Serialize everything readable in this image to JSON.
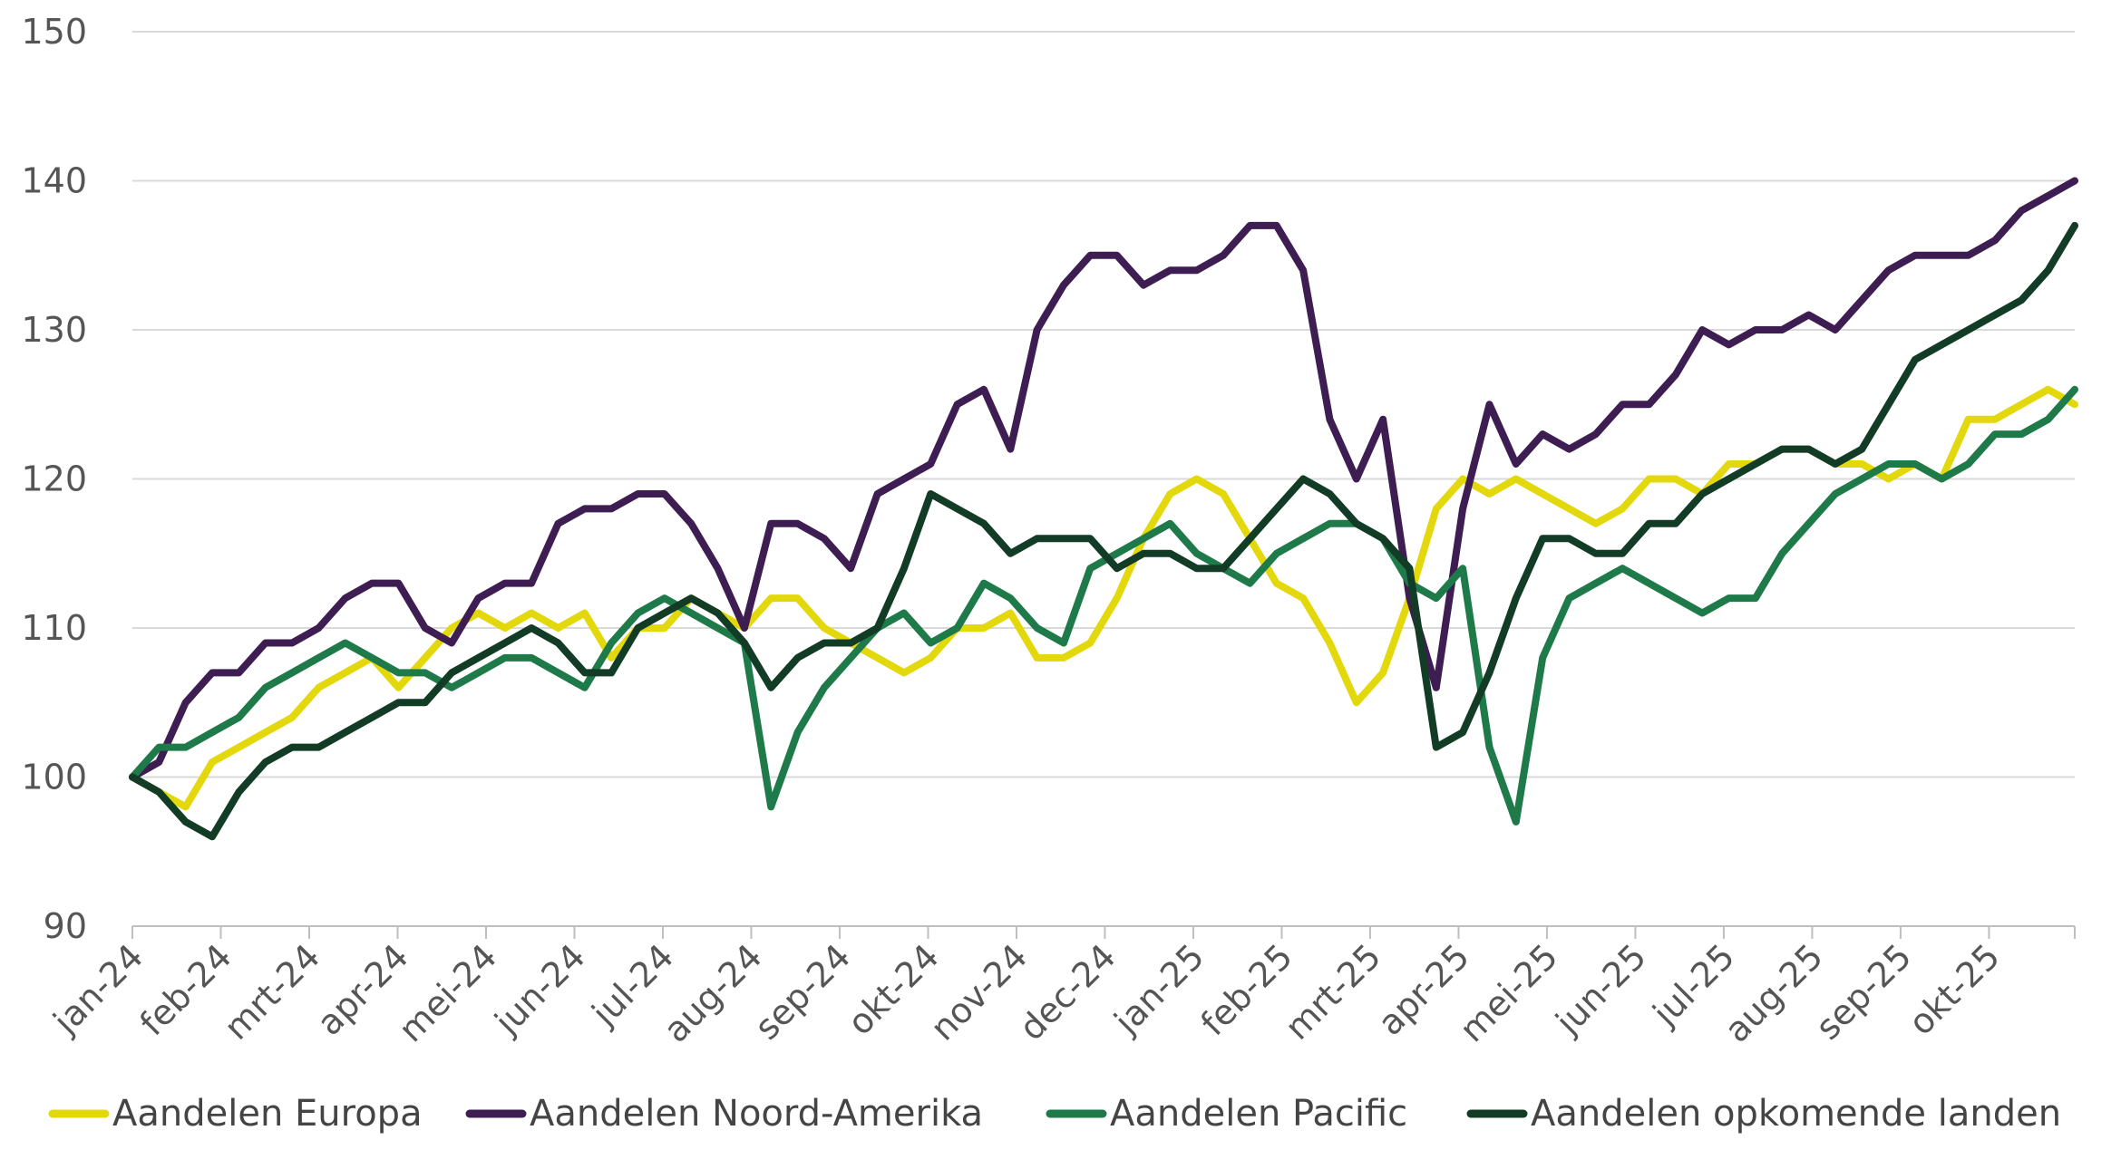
{
  "chart_data": {
    "type": "line",
    "title": "",
    "xlabel": "",
    "ylabel": "",
    "ylim": [
      90,
      150
    ],
    "yticks": [
      90,
      100,
      110,
      120,
      130,
      140,
      150
    ],
    "grid": true,
    "legend": "bottom",
    "x_start": "jan-24",
    "x_end": "eind okt-25",
    "x_tick_labels": [
      "jan-24",
      "feb-24",
      "mrt-24",
      "apr-24",
      "mei-24",
      "jun-24",
      "jul-24",
      "aug-24",
      "sep-24",
      "okt-24",
      "nov-24",
      "dec-24",
      "jan-25",
      "feb-25",
      "mrt-25",
      "apr-25",
      "mei-25",
      "jun-25",
      "jul-25",
      "aug-25",
      "sep-25",
      "okt-25"
    ],
    "series": [
      {
        "name": "Aandelen Europa",
        "color": "#e3d80b",
        "values": [
          100,
          99,
          98,
          101,
          102,
          103,
          104,
          106,
          107,
          108,
          106,
          108,
          110,
          111,
          110,
          111,
          110,
          111,
          108,
          110,
          110,
          112,
          111,
          110,
          112,
          112,
          110,
          109,
          108,
          107,
          108,
          110,
          110,
          111,
          108,
          108,
          109,
          112,
          116,
          119,
          120,
          119,
          116,
          113,
          112,
          109,
          105,
          107,
          112,
          118,
          120,
          119,
          120,
          119,
          118,
          117,
          118,
          120,
          120,
          119,
          121,
          121,
          122,
          122,
          121,
          121,
          120,
          121,
          120,
          124,
          124,
          125,
          126,
          125
        ]
      },
      {
        "name": "Aandelen Noord-Amerika",
        "color": "#3d1d52",
        "values": [
          100,
          101,
          105,
          107,
          107,
          109,
          109,
          110,
          112,
          113,
          113,
          110,
          109,
          112,
          113,
          113,
          117,
          118,
          118,
          119,
          119,
          117,
          114,
          110,
          117,
          117,
          116,
          114,
          119,
          120,
          121,
          125,
          126,
          122,
          130,
          133,
          135,
          135,
          133,
          134,
          134,
          135,
          137,
          137,
          134,
          124,
          120,
          124,
          112,
          106,
          118,
          125,
          121,
          123,
          122,
          123,
          125,
          125,
          127,
          130,
          129,
          130,
          130,
          131,
          130,
          132,
          134,
          135,
          135,
          135,
          136,
          138,
          139,
          140
        ]
      },
      {
        "name": "Aandelen Pacific",
        "color": "#1f7a4a",
        "values": [
          100,
          102,
          102,
          103,
          104,
          106,
          107,
          108,
          109,
          108,
          107,
          107,
          106,
          107,
          108,
          108,
          107,
          106,
          109,
          111,
          112,
          111,
          110,
          109,
          98,
          103,
          106,
          108,
          110,
          111,
          109,
          110,
          113,
          112,
          110,
          109,
          114,
          115,
          116,
          117,
          115,
          114,
          113,
          115,
          116,
          117,
          117,
          116,
          113,
          112,
          114,
          102,
          97,
          108,
          112,
          113,
          114,
          113,
          112,
          111,
          112,
          112,
          115,
          117,
          119,
          120,
          121,
          121,
          120,
          121,
          123,
          123,
          124,
          126
        ]
      },
      {
        "name": "Aandelen opkomende landen",
        "color": "#123c26",
        "values": [
          100,
          99,
          97,
          96,
          99,
          101,
          102,
          102,
          103,
          104,
          105,
          105,
          107,
          108,
          109,
          110,
          109,
          107,
          107,
          110,
          111,
          112,
          111,
          109,
          106,
          108,
          109,
          109,
          110,
          114,
          119,
          118,
          117,
          115,
          116,
          116,
          116,
          114,
          115,
          115,
          114,
          114,
          116,
          118,
          120,
          119,
          117,
          116,
          114,
          102,
          103,
          107,
          112,
          116,
          116,
          115,
          115,
          117,
          117,
          119,
          120,
          121,
          122,
          122,
          121,
          122,
          125,
          128,
          129,
          130,
          131,
          132,
          134,
          137
        ]
      }
    ]
  }
}
